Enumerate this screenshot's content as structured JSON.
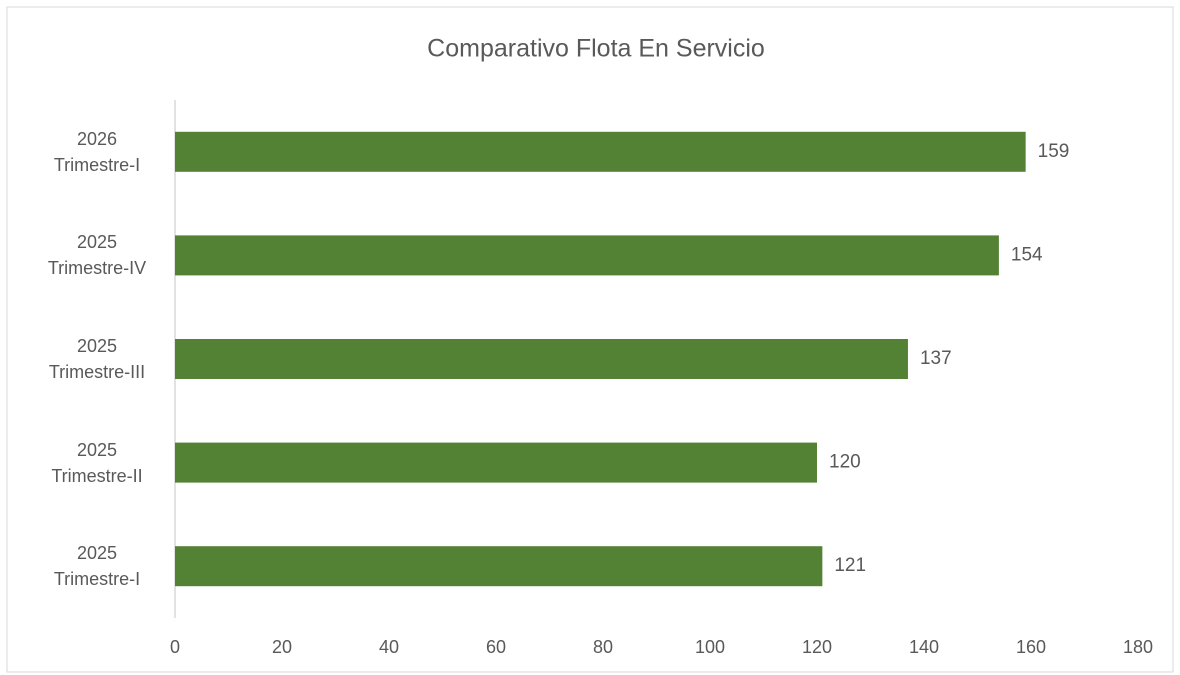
{
  "chart_data": {
    "type": "bar",
    "orientation": "horizontal",
    "title": "Comparativo Flota En Servicio",
    "categories": [
      "2026\nTrimestre-I",
      "2025\nTrimestre-IV",
      "2025\nTrimestre-III",
      "2025\nTrimestre-II",
      "2025\nTrimestre-I"
    ],
    "values": [
      159,
      154,
      137,
      120,
      121
    ],
    "color": "#548235",
    "xlim": [
      0,
      180
    ],
    "xticks": [
      0,
      20,
      40,
      60,
      80,
      100,
      120,
      140,
      160,
      180
    ],
    "grid": false
  }
}
